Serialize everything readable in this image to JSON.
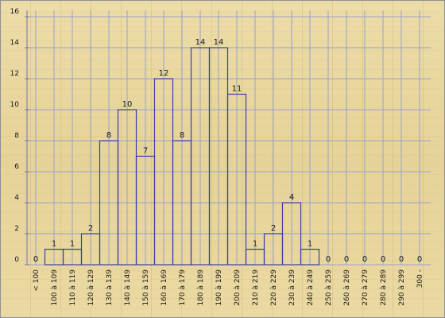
{
  "chart_data": {
    "type": "bar",
    "categories": [
      "< 100",
      "100 à 109",
      "110 à 119",
      "120 à 129",
      "130 à 139",
      "140 à 149",
      "150 à 159",
      "160 à 169",
      "170 à 179",
      "180 à 189",
      "190 à 199",
      "200 à 209",
      "210 à 219",
      "220 à 229",
      "230 à 239",
      "240 à 249",
      "250 à 259",
      "260 à 269",
      "270 à 279",
      "280 à 289",
      "290 à 299",
      "300 -"
    ],
    "values": [
      0,
      1,
      1,
      2,
      8,
      10,
      7,
      12,
      8,
      14,
      14,
      11,
      1,
      2,
      4,
      1,
      0,
      0,
      0,
      0,
      0,
      0
    ],
    "title": "",
    "xlabel": "",
    "ylabel": "",
    "ylim": [
      0,
      16
    ],
    "yticks": [
      0,
      2,
      4,
      6,
      8,
      10,
      12,
      14,
      16
    ],
    "grid": true,
    "bar_outline_color": "#3a3fa8",
    "grid_color": "#9aa2c8"
  }
}
